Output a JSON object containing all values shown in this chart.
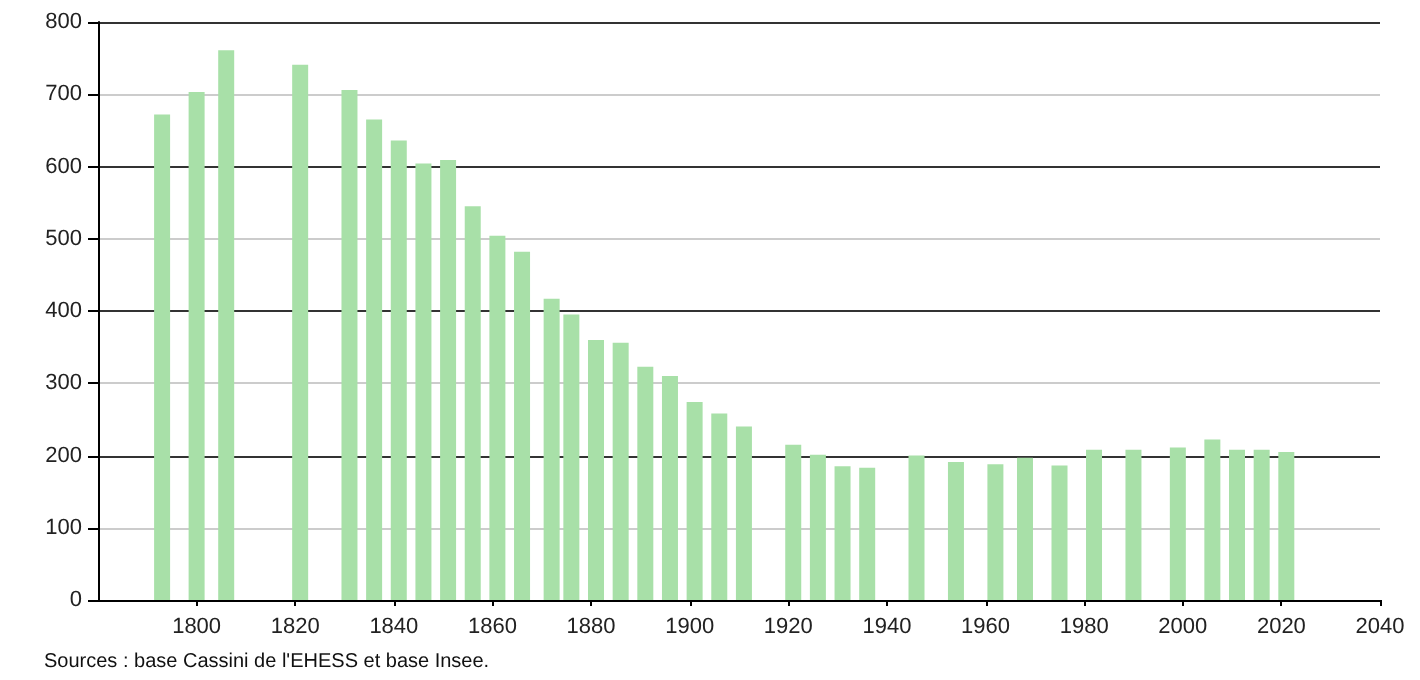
{
  "chart_data": {
    "type": "bar",
    "x": [
      1793,
      1800,
      1806,
      1821,
      1831,
      1836,
      1841,
      1846,
      1851,
      1856,
      1861,
      1866,
      1872,
      1876,
      1881,
      1886,
      1891,
      1896,
      1901,
      1906,
      1911,
      1921,
      1926,
      1931,
      1936,
      1946,
      1954,
      1962,
      1968,
      1975,
      1982,
      1990,
      1999,
      2006,
      2011,
      2016,
      2021
    ],
    "values": [
      672,
      703,
      761,
      741,
      706,
      665,
      636,
      604,
      609,
      545,
      504,
      482,
      417,
      395,
      360,
      356,
      323,
      310,
      274,
      258,
      240,
      215,
      201,
      185,
      183,
      200,
      191,
      188,
      197,
      186,
      208,
      208,
      211,
      222,
      208,
      208,
      205
    ],
    "color": "#a8e0a8",
    "xlim": [
      1780,
      2040
    ],
    "xticks": [
      1800,
      1820,
      1840,
      1860,
      1880,
      1900,
      1920,
      1940,
      1960,
      1980,
      2000,
      2020,
      2040
    ],
    "ylim": [
      0,
      800
    ],
    "yticks": [
      0,
      100,
      200,
      300,
      400,
      500,
      600,
      700,
      800
    ],
    "grid": "y",
    "annotations": [
      "Sources : base Cassini de l'EHESS et base Insee."
    ]
  }
}
